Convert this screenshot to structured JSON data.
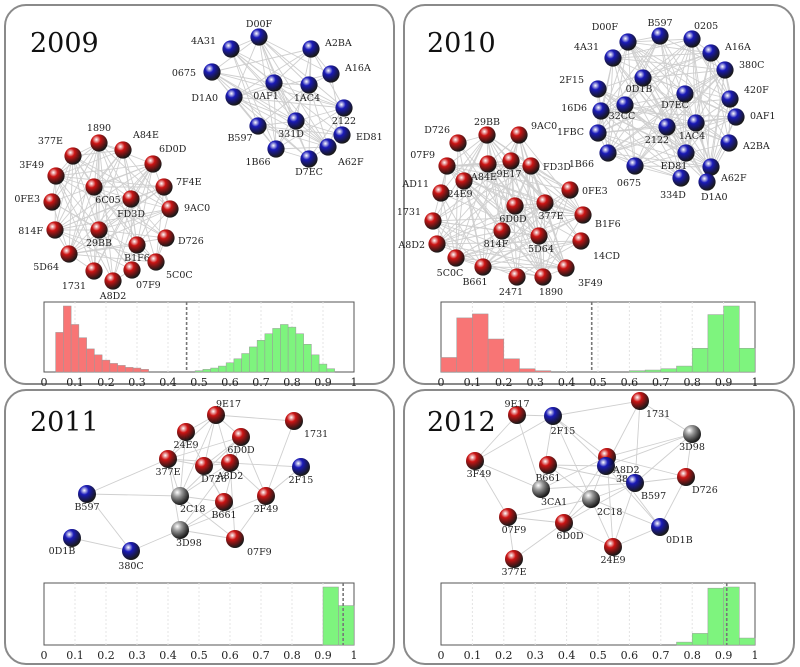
{
  "colors": {
    "red": "#cc1414",
    "blue": "#1a1ab8",
    "gray": "#9a9a9a",
    "hist_red": "#f87575",
    "hist_green": "#7ef47e",
    "edge": "#cfcfcf",
    "border": "#8a8a8a"
  },
  "panels": [
    {
      "year": "2009",
      "nodes": [
        {
          "id": "D00F",
          "c": "blue"
        },
        {
          "id": "4A31",
          "c": "blue"
        },
        {
          "id": "A2BA",
          "c": "blue"
        },
        {
          "id": "0675",
          "c": "blue"
        },
        {
          "id": "A16A",
          "c": "blue"
        },
        {
          "id": "D1A0",
          "c": "blue"
        },
        {
          "id": "0AF1",
          "c": "blue"
        },
        {
          "id": "1AC4",
          "c": "blue"
        },
        {
          "id": "2122",
          "c": "blue"
        },
        {
          "id": "B597",
          "c": "blue"
        },
        {
          "id": "331D",
          "c": "blue"
        },
        {
          "id": "ED81",
          "c": "blue"
        },
        {
          "id": "1B66",
          "c": "blue"
        },
        {
          "id": "D7EC",
          "c": "blue"
        },
        {
          "id": "A62F",
          "c": "blue"
        },
        {
          "id": "1890",
          "c": "red"
        },
        {
          "id": "377E",
          "c": "red"
        },
        {
          "id": "A84E",
          "c": "red"
        },
        {
          "id": "6D0D",
          "c": "red"
        },
        {
          "id": "3F49",
          "c": "red"
        },
        {
          "id": "7F4E",
          "c": "red"
        },
        {
          "id": "6C05",
          "c": "red"
        },
        {
          "id": "0FE3",
          "c": "red"
        },
        {
          "id": "FD3D",
          "c": "red"
        },
        {
          "id": "9AC0",
          "c": "red"
        },
        {
          "id": "814F",
          "c": "red"
        },
        {
          "id": "D726",
          "c": "red"
        },
        {
          "id": "29BB",
          "c": "red"
        },
        {
          "id": "B1F6",
          "c": "red"
        },
        {
          "id": "5D64",
          "c": "red"
        },
        {
          "id": "5C0C",
          "c": "red"
        },
        {
          "id": "1731",
          "c": "red"
        },
        {
          "id": "07F9",
          "c": "red"
        },
        {
          "id": "A8D2",
          "c": "red"
        }
      ],
      "histogram": {
        "xlim": [
          0,
          1
        ],
        "ticks": [
          "0",
          "0.1",
          "0.2",
          "0.3",
          "0.4",
          "0.5",
          "0.6",
          "0.7",
          "0.8",
          "0.9",
          "1"
        ],
        "threshold": 0.46,
        "bin_width": 0.025,
        "red": [
          {
            "x": 0.05,
            "v": 0.6
          },
          {
            "x": 0.075,
            "v": 1.0
          },
          {
            "x": 0.1,
            "v": 0.72
          },
          {
            "x": 0.125,
            "v": 0.52
          },
          {
            "x": 0.15,
            "v": 0.35
          },
          {
            "x": 0.175,
            "v": 0.26
          },
          {
            "x": 0.2,
            "v": 0.18
          },
          {
            "x": 0.225,
            "v": 0.13
          },
          {
            "x": 0.25,
            "v": 0.1
          },
          {
            "x": 0.275,
            "v": 0.07
          },
          {
            "x": 0.3,
            "v": 0.06
          },
          {
            "x": 0.325,
            "v": 0.04
          }
        ],
        "green": [
          {
            "x": 0.5,
            "v": 0.02
          },
          {
            "x": 0.525,
            "v": 0.04
          },
          {
            "x": 0.55,
            "v": 0.06
          },
          {
            "x": 0.575,
            "v": 0.09
          },
          {
            "x": 0.6,
            "v": 0.14
          },
          {
            "x": 0.625,
            "v": 0.2
          },
          {
            "x": 0.65,
            "v": 0.28
          },
          {
            "x": 0.675,
            "v": 0.38
          },
          {
            "x": 0.7,
            "v": 0.48
          },
          {
            "x": 0.725,
            "v": 0.58
          },
          {
            "x": 0.75,
            "v": 0.66
          },
          {
            "x": 0.775,
            "v": 0.72
          },
          {
            "x": 0.8,
            "v": 0.68
          },
          {
            "x": 0.825,
            "v": 0.58
          },
          {
            "x": 0.85,
            "v": 0.42
          },
          {
            "x": 0.875,
            "v": 0.26
          },
          {
            "x": 0.9,
            "v": 0.12
          },
          {
            "x": 0.925,
            "v": 0.05
          }
        ]
      }
    },
    {
      "year": "2010",
      "nodes": [
        {
          "id": "B597",
          "c": "blue"
        },
        {
          "id": "0205",
          "c": "blue"
        },
        {
          "id": "D00F",
          "c": "blue"
        },
        {
          "id": "A16A",
          "c": "blue"
        },
        {
          "id": "4A31",
          "c": "blue"
        },
        {
          "id": "380C",
          "c": "blue"
        },
        {
          "id": "2F15",
          "c": "blue"
        },
        {
          "id": "0D1B",
          "c": "blue"
        },
        {
          "id": "420F",
          "c": "blue"
        },
        {
          "id": "D7EC",
          "c": "blue"
        },
        {
          "id": "16D6",
          "c": "blue"
        },
        {
          "id": "32CC",
          "c": "blue"
        },
        {
          "id": "0AF1",
          "c": "blue"
        },
        {
          "id": "1FBC",
          "c": "blue"
        },
        {
          "id": "2122",
          "c": "blue"
        },
        {
          "id": "1AC4",
          "c": "blue"
        },
        {
          "id": "A2BA",
          "c": "blue"
        },
        {
          "id": "1B66",
          "c": "blue"
        },
        {
          "id": "ED81",
          "c": "blue"
        },
        {
          "id": "A62F",
          "c": "blue"
        },
        {
          "id": "0675",
          "c": "blue"
        },
        {
          "id": "334D",
          "c": "blue"
        },
        {
          "id": "D1A0",
          "c": "blue"
        },
        {
          "id": "D726",
          "c": "red"
        },
        {
          "id": "29BB",
          "c": "red"
        },
        {
          "id": "9AC0",
          "c": "red"
        },
        {
          "id": "07F9",
          "c": "red"
        },
        {
          "id": "AD11",
          "c": "red"
        },
        {
          "id": "FD3D",
          "c": "red"
        },
        {
          "id": "A84E",
          "c": "red"
        },
        {
          "id": "9E17",
          "c": "red"
        },
        {
          "id": "1731",
          "c": "red"
        },
        {
          "id": "0FE3",
          "c": "red"
        },
        {
          "id": "24E9",
          "c": "red"
        },
        {
          "id": "6D0D",
          "c": "red"
        },
        {
          "id": "377E",
          "c": "red"
        },
        {
          "id": "B1F6",
          "c": "red"
        },
        {
          "id": "A8D2",
          "c": "red"
        },
        {
          "id": "814F",
          "c": "red"
        },
        {
          "id": "5D64",
          "c": "red"
        },
        {
          "id": "14CD",
          "c": "red"
        },
        {
          "id": "5C0C",
          "c": "red"
        },
        {
          "id": "B661",
          "c": "red"
        },
        {
          "id": "2471",
          "c": "red"
        },
        {
          "id": "1890",
          "c": "red"
        },
        {
          "id": "3F49",
          "c": "red"
        }
      ],
      "histogram": {
        "xlim": [
          0,
          1
        ],
        "ticks": [
          "0",
          "0.1",
          "0.2",
          "0.3",
          "0.4",
          "0.5",
          "0.6",
          "0.7",
          "0.8",
          "0.9",
          "1"
        ],
        "threshold": 0.48,
        "bin_width": 0.05,
        "red": [
          {
            "x": 0.025,
            "v": 0.22
          },
          {
            "x": 0.075,
            "v": 0.82
          },
          {
            "x": 0.125,
            "v": 0.88
          },
          {
            "x": 0.175,
            "v": 0.5
          },
          {
            "x": 0.225,
            "v": 0.2
          },
          {
            "x": 0.275,
            "v": 0.05
          },
          {
            "x": 0.325,
            "v": 0.02
          }
        ],
        "green": [
          {
            "x": 0.625,
            "v": 0.02
          },
          {
            "x": 0.675,
            "v": 0.03
          },
          {
            "x": 0.725,
            "v": 0.05
          },
          {
            "x": 0.775,
            "v": 0.09
          },
          {
            "x": 0.825,
            "v": 0.36
          },
          {
            "x": 0.875,
            "v": 0.87
          },
          {
            "x": 0.925,
            "v": 1.0
          },
          {
            "x": 0.975,
            "v": 0.36
          }
        ]
      }
    },
    {
      "year": "2011",
      "nodes": [
        {
          "id": "9E17",
          "c": "red"
        },
        {
          "id": "1731",
          "c": "red"
        },
        {
          "id": "24E9",
          "c": "red"
        },
        {
          "id": "6D0D",
          "c": "red"
        },
        {
          "id": "377E",
          "c": "red"
        },
        {
          "id": "A8D2",
          "c": "red"
        },
        {
          "id": "D726",
          "c": "red"
        },
        {
          "id": "2F15",
          "c": "blue"
        },
        {
          "id": "B597",
          "c": "blue"
        },
        {
          "id": "2C18",
          "c": "gray"
        },
        {
          "id": "3F49",
          "c": "red"
        },
        {
          "id": "B661",
          "c": "red"
        },
        {
          "id": "3D98",
          "c": "gray"
        },
        {
          "id": "0D1B",
          "c": "blue"
        },
        {
          "id": "07F9",
          "c": "red"
        },
        {
          "id": "380C",
          "c": "blue"
        }
      ],
      "histogram": {
        "xlim": [
          0,
          1
        ],
        "ticks": [
          "0",
          "0.1",
          "0.2",
          "0.3",
          "0.4",
          "0.5",
          "0.6",
          "0.7",
          "0.8",
          "0.9",
          "1"
        ],
        "threshold": 0.965,
        "bin_width": 0.05,
        "red": [],
        "green": [
          {
            "x": 0.925,
            "v": 1.0
          },
          {
            "x": 0.975,
            "v": 0.68
          }
        ]
      }
    },
    {
      "year": "2012",
      "nodes": [
        {
          "id": "9E17",
          "c": "red"
        },
        {
          "id": "2F15",
          "c": "blue"
        },
        {
          "id": "1731",
          "c": "red"
        },
        {
          "id": "3D98",
          "c": "gray"
        },
        {
          "id": "A8D2",
          "c": "red"
        },
        {
          "id": "3F49",
          "c": "red"
        },
        {
          "id": "B661",
          "c": "red"
        },
        {
          "id": "380C",
          "c": "blue"
        },
        {
          "id": "D726",
          "c": "red"
        },
        {
          "id": "B597",
          "c": "blue"
        },
        {
          "id": "3CA1",
          "c": "gray"
        },
        {
          "id": "2C18",
          "c": "gray"
        },
        {
          "id": "07F9",
          "c": "red"
        },
        {
          "id": "0D1B",
          "c": "blue"
        },
        {
          "id": "6D0D",
          "c": "red"
        },
        {
          "id": "24E9",
          "c": "red"
        },
        {
          "id": "377E",
          "c": "red"
        }
      ],
      "histogram": {
        "xlim": [
          0,
          1
        ],
        "ticks": [
          "0",
          "0.1",
          "0.2",
          "0.3",
          "0.4",
          "0.5",
          "0.6",
          "0.7",
          "0.8",
          "0.9",
          "1"
        ],
        "threshold": 0.91,
        "bin_width": 0.05,
        "red": [],
        "green": [
          {
            "x": 0.775,
            "v": 0.05
          },
          {
            "x": 0.825,
            "v": 0.2
          },
          {
            "x": 0.875,
            "v": 0.98
          },
          {
            "x": 0.925,
            "v": 1.0
          },
          {
            "x": 0.975,
            "v": 0.12
          }
        ]
      }
    }
  ]
}
